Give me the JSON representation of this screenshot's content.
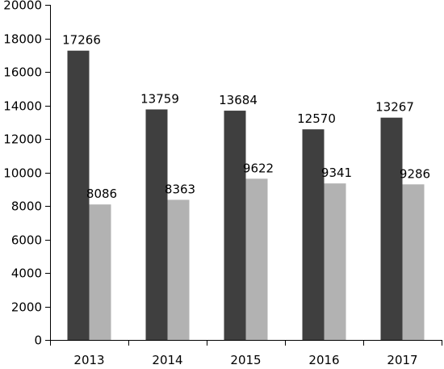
{
  "chart_data": {
    "type": "bar",
    "categories": [
      "2013",
      "2014",
      "2015",
      "2016",
      "2017"
    ],
    "series": [
      {
        "values": [
          17266,
          13759,
          13684,
          12570,
          13267
        ],
        "color": "#3f3f3f"
      },
      {
        "values": [
          8086,
          8363,
          9622,
          9341,
          9286
        ],
        "color": "#b2b2b2"
      }
    ],
    "y_ticks": [
      "0",
      "2000",
      "4000",
      "6000",
      "8000",
      "10000",
      "12000",
      "14000",
      "16000",
      "18000",
      "20000"
    ],
    "ylim": [
      0,
      20000
    ],
    "grid": false,
    "legend": false,
    "data_labels": true
  }
}
